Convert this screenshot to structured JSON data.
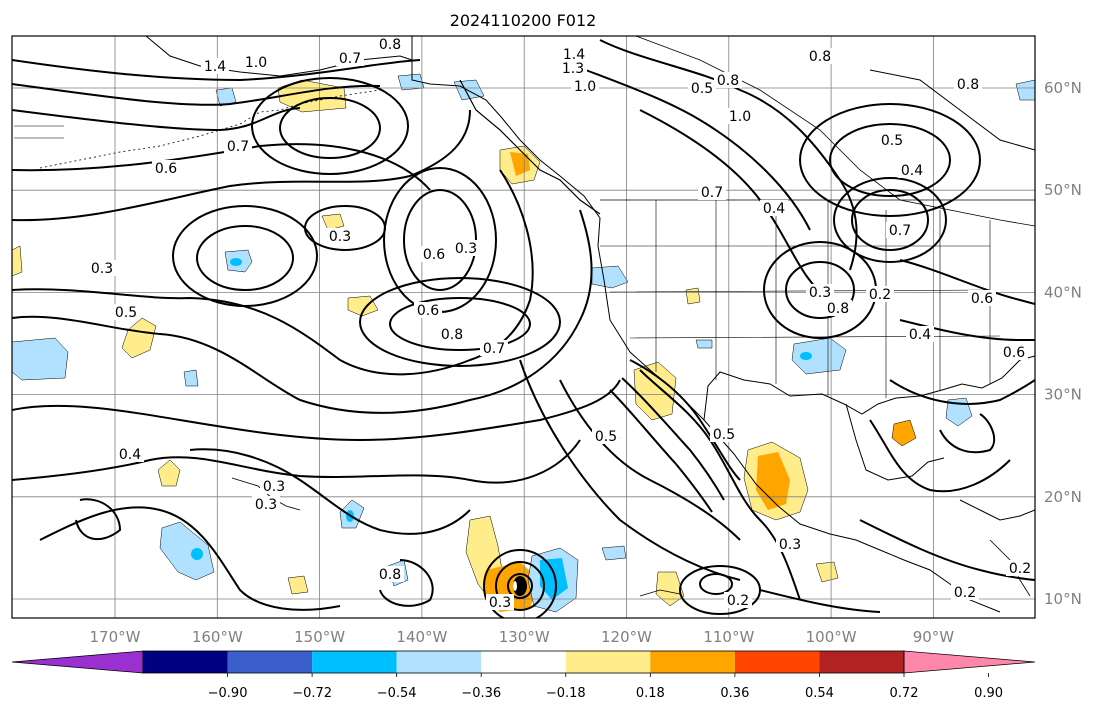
{
  "title": "2024110200 F012",
  "map": {
    "lon_range": [
      -180,
      -80
    ],
    "lat_range": [
      8,
      65
    ],
    "lon_ticks": [
      "170°W",
      "160°W",
      "150°W",
      "140°W",
      "130°W",
      "120°W",
      "110°W",
      "100°W",
      "90°W"
    ],
    "lat_ticks": [
      "60°N",
      "50°N",
      "40°N",
      "30°N",
      "20°N",
      "10°N"
    ],
    "grid": true,
    "land_outline_color": "#000000"
  },
  "contours": {
    "color": "#000000",
    "labels": [
      "0.8",
      "1.4",
      "1.0",
      "0.7",
      "1.4",
      "1.3",
      "1.0",
      "0.8",
      "0.8",
      "0.5",
      "0.8",
      "1.0",
      "0.7",
      "0.6",
      "0.4",
      "0.5",
      "0.4",
      "0.3",
      "0.6",
      "0.3",
      "0.8",
      "0.7",
      "0.7",
      "0.8",
      "0.3",
      "0.5",
      "0.6",
      "0.7",
      "0.5",
      "0.8",
      "0.6",
      "0.4",
      "0.6",
      "0.4",
      "0.3",
      "0.5",
      "0.8",
      "0.3",
      "0.3",
      "0.2",
      "0.3",
      "0.2",
      "0.3",
      "0.2",
      "0.2"
    ]
  },
  "colorbar": {
    "orientation": "horizontal",
    "extend": "both",
    "colors": [
      "#9b30d0",
      "#000080",
      "#3a5fcd",
      "#00bfff",
      "#b0e2ff",
      "#ffffff",
      "#ffec8b",
      "#ffa500",
      "#ff4500",
      "#b22222",
      "#ff88aa"
    ],
    "tick_labels": [
      "−0.90",
      "−0.72",
      "−0.54",
      "−0.36",
      "−0.18",
      "0.18",
      "0.36",
      "0.54",
      "0.72",
      "0.90"
    ]
  },
  "chart_data": {
    "type": "heatmap",
    "title": "2024110200 F012",
    "xlabel": "",
    "ylabel": "",
    "xlim": [
      -180,
      -80
    ],
    "ylim": [
      8,
      65
    ],
    "color_levels": [
      -0.9,
      -0.72,
      -0.54,
      -0.36,
      -0.18,
      0.18,
      0.36,
      0.54,
      0.72,
      0.9
    ],
    "shaded_regions": [
      {
        "lon": -169,
        "lat": 40,
        "level": -0.36
      },
      {
        "lon": -164,
        "lat": 43,
        "level": -0.54
      },
      {
        "lon": -178,
        "lat": 34,
        "level": -0.18
      },
      {
        "lon": -165,
        "lat": 36,
        "level": 0.36
      },
      {
        "lon": -164,
        "lat": 21,
        "level": 0.36
      },
      {
        "lon": -162,
        "lat": 14,
        "level": -0.36
      },
      {
        "lon": -161,
        "lat": 12,
        "level": -0.54
      },
      {
        "lon": -142,
        "lat": 16,
        "level": -0.54
      },
      {
        "lon": -131,
        "lat": 12,
        "level": 0.54
      },
      {
        "lon": -127,
        "lat": 13,
        "level": -0.36
      },
      {
        "lon": -126,
        "lat": 12,
        "level": -0.54
      },
      {
        "lon": -120,
        "lat": 30,
        "level": 0.36
      },
      {
        "lon": -106,
        "lat": 22,
        "level": 0.36
      },
      {
        "lon": -105,
        "lat": 21,
        "level": 0.54
      },
      {
        "lon": -128,
        "lat": 51,
        "level": 0.54
      },
      {
        "lon": -103,
        "lat": 35,
        "level": -0.36
      },
      {
        "lon": -101,
        "lat": 34,
        "level": -0.54
      },
      {
        "lon": -85,
        "lat": 28,
        "level": -0.36
      },
      {
        "lon": -91,
        "lat": 26,
        "level": 0.36
      },
      {
        "lon": -151,
        "lat": 59,
        "level": 0.36
      },
      {
        "lon": -145,
        "lat": 44,
        "level": 0.36
      },
      {
        "lon": -118,
        "lat": 41,
        "level": -0.36
      }
    ]
  }
}
